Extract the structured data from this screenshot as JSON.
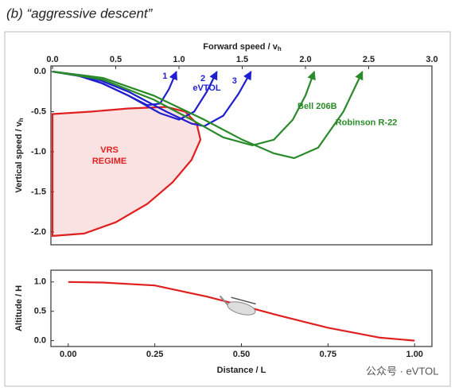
{
  "chart_data": [
    {
      "type": "line",
      "title": "(b) “aggressive descent”",
      "xlabel": "Forward speed / v",
      "xlabel_sub": "h",
      "ylabel": "Vertical speed / v",
      "ylabel_sub": "h",
      "xlim": [
        0,
        3
      ],
      "ylim": [
        -2.16,
        0.07
      ],
      "xticks": [
        {
          "value": 0,
          "label": "0.0"
        },
        0.5,
        {
          "value": 1,
          "label": "1.0"
        },
        1.5,
        {
          "value": 2,
          "label": "2.0"
        },
        2.5,
        {
          "value": 3,
          "label": "3.0"
        }
      ],
      "yticks": [
        {
          "value": 0,
          "label": "0.0"
        },
        -0.5,
        {
          "value": -1,
          "label": "-1.0"
        },
        -1.5,
        {
          "value": -2,
          "label": "-2.0"
        }
      ],
      "region": {
        "label": [
          "VRS",
          "REGIME"
        ],
        "color": "#e02020",
        "x": [
          0,
          0.3,
          0.6,
          0.9,
          1.05,
          1.14,
          1.17,
          1.1,
          0.95,
          0.75,
          0.5,
          0.25,
          0
        ],
        "values": [
          -0.53,
          -0.5,
          -0.46,
          -0.44,
          -0.5,
          -0.65,
          -0.85,
          -1.1,
          -1.38,
          -1.65,
          -1.88,
          -2.02,
          -2.05
        ]
      },
      "annotations": [
        "eVTOL"
      ],
      "series": [
        {
          "name": "1",
          "color": "#1f1fd0",
          "x": [
            0,
            0.2,
            0.4,
            0.6,
            0.75,
            0.85,
            0.92,
            0.98
          ],
          "values": [
            0,
            -0.05,
            -0.15,
            -0.3,
            -0.42,
            -0.4,
            -0.22,
            0
          ]
        },
        {
          "name": "2",
          "color": "#1f1fd0",
          "x": [
            0,
            0.3,
            0.6,
            0.85,
            1.0,
            1.12,
            1.22,
            1.3
          ],
          "values": [
            0,
            -0.08,
            -0.3,
            -0.52,
            -0.6,
            -0.5,
            -0.25,
            0
          ]
        },
        {
          "name": "3",
          "color": "#1f1fd0",
          "x": [
            0,
            0.3,
            0.6,
            0.9,
            1.1,
            1.2,
            1.35,
            1.47,
            1.57
          ],
          "values": [
            0,
            -0.06,
            -0.25,
            -0.5,
            -0.65,
            -0.68,
            -0.55,
            -0.28,
            0
          ]
        },
        {
          "name": "Bell 206B",
          "color": "#2a8a2a",
          "x": [
            0,
            0.4,
            0.8,
            1.1,
            1.35,
            1.58,
            1.75,
            1.9,
            2.0,
            2.07
          ],
          "values": [
            0,
            -0.1,
            -0.35,
            -0.6,
            -0.82,
            -0.92,
            -0.85,
            -0.6,
            -0.3,
            0
          ]
        },
        {
          "name": "Robinson R-22",
          "color": "#2a8a2a",
          "x": [
            0,
            0.4,
            0.8,
            1.2,
            1.5,
            1.75,
            1.91,
            2.1,
            2.3,
            2.45
          ],
          "values": [
            0,
            -0.08,
            -0.3,
            -0.6,
            -0.85,
            -1.02,
            -1.08,
            -0.95,
            -0.5,
            0
          ]
        }
      ]
    },
    {
      "type": "line",
      "xlabel": "Distance / L",
      "ylabel": "Altitude / H",
      "xlim": [
        -0.05,
        1.05
      ],
      "ylim": [
        -0.1,
        1.2
      ],
      "xticks": [
        {
          "value": 0,
          "label": "0.00"
        },
        0.25,
        {
          "value": 0.5,
          "label": "0.50"
        },
        0.75,
        {
          "value": 1,
          "label": "1.00"
        }
      ],
      "yticks": [
        {
          "value": 0,
          "label": "0.0"
        },
        0.5,
        {
          "value": 1,
          "label": "1.0"
        }
      ],
      "series": [
        {
          "color": "#e02020",
          "x": [
            0,
            0.1,
            0.25,
            0.4,
            0.5,
            0.6,
            0.75,
            0.9,
            1.0
          ],
          "values": [
            1.0,
            0.99,
            0.94,
            0.75,
            0.6,
            0.44,
            0.22,
            0.05,
            0
          ]
        }
      ]
    }
  ],
  "watermark": "公众号 · eVTOL"
}
